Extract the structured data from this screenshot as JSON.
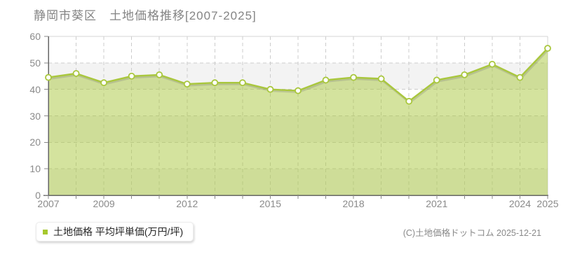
{
  "header": {
    "title": "静岡市葵区　土地価格推移[2007-2025]"
  },
  "legend": {
    "label": "土地価格 平均坪単価(万円/坪)",
    "marker_color": "#a6c82e"
  },
  "footer": {
    "copyright": "(C)土地価格ドットコム 2025-12-21"
  },
  "chart_data": {
    "type": "area",
    "title": "静岡市葵区 土地価格推移[2007-2025]",
    "series": [
      {
        "name": "土地価格 平均坪単価(万円/坪)",
        "values": [
          44.5,
          46,
          42.5,
          45,
          45.5,
          42,
          42.5,
          42.5,
          40,
          39.5,
          43.5,
          44.5,
          44,
          35.5,
          43.5,
          45.5,
          49.5,
          44.5,
          55.5
        ]
      }
    ],
    "x": [
      2007,
      2008,
      2009,
      2010,
      2011,
      2012,
      2013,
      2014,
      2015,
      2016,
      2017,
      2018,
      2019,
      2020,
      2021,
      2022,
      2023,
      2024,
      2025
    ],
    "xtick_labels": [
      "2007",
      "2009",
      "2012",
      "2015",
      "2018",
      "2021",
      "2024",
      "2025"
    ],
    "yticks": [
      0,
      10,
      20,
      30,
      40,
      50,
      60
    ],
    "ylim": [
      0,
      60
    ],
    "xlabel": "",
    "ylabel": "",
    "grid": true,
    "legend_position": "bottom-left",
    "colors": {
      "line": "#a9c73d",
      "fill_rgba": "rgba(169,199,61,0.5)",
      "marker_fill": "#ffffff",
      "marker_stroke": "#a9c73d",
      "grid_line": "#cccccc",
      "band_gray": "#f3f3f3",
      "plot_border": "#d4d4d4",
      "axis_line": "#666666",
      "tick": "#888888"
    }
  }
}
